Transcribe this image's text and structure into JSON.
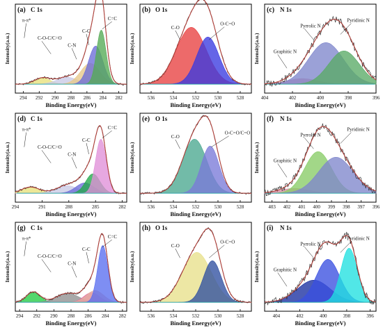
{
  "ylabel": "Intensity(a.u.)",
  "xlabel": "Binding Energy(eV)",
  "chart_data": [
    {
      "id": "a",
      "type": "area",
      "panel_label": "(a)",
      "element": "C 1s",
      "xlim": [
        295,
        281
      ],
      "xticks": [
        294,
        292,
        290,
        288,
        286,
        284,
        282
      ],
      "peaks": [
        {
          "name": "π-π*",
          "center": 291.6,
          "height": 0.09,
          "width": 1.0,
          "color": "#e8e07a"
        },
        {
          "name": "C-O-C/C=O",
          "center": 288.5,
          "height": 0.1,
          "width": 1.3,
          "color": "#c9c9e6"
        },
        {
          "name": "C-N",
          "center": 285.6,
          "height": 0.3,
          "width": 1.2,
          "color": "#e8c888"
        },
        {
          "name": "C-C",
          "center": 284.9,
          "height": 0.55,
          "width": 0.9,
          "color": "#6c6cd8"
        },
        {
          "name": "C=C",
          "center": 284.2,
          "height": 0.78,
          "width": 0.6,
          "color": "#55aa55"
        }
      ]
    },
    {
      "id": "b",
      "type": "area",
      "panel_label": "(b)",
      "element": "O 1s",
      "xlim": [
        537,
        527
      ],
      "xticks": [
        536,
        534,
        532,
        530,
        528
      ],
      "peaks": [
        {
          "name": "C-O",
          "center": 532.4,
          "height": 0.82,
          "width": 1.35,
          "color": "#e84040"
        },
        {
          "name": "O-C=O",
          "center": 530.9,
          "height": 0.68,
          "width": 1.0,
          "color": "#3a3ae0"
        }
      ]
    },
    {
      "id": "c",
      "type": "area",
      "panel_label": "(c)",
      "element": "N 1s",
      "xlim": [
        404,
        396
      ],
      "xticks": [
        404,
        402,
        400,
        398,
        396
      ],
      "peaks": [
        {
          "name": "Graphitic N",
          "center": 401.3,
          "height": 0.08,
          "width": 1.1,
          "color": "#d98aa0"
        },
        {
          "name": "Pyrrolic N",
          "center": 399.6,
          "height": 0.6,
          "width": 1.25,
          "color": "#7f86cc"
        },
        {
          "name": "Pyridinic N",
          "center": 398.3,
          "height": 0.48,
          "width": 1.1,
          "color": "#5aaa66"
        }
      ]
    },
    {
      "id": "d",
      "type": "area",
      "panel_label": "(d)",
      "element": "C 1s",
      "xlim": [
        294,
        281.5
      ],
      "xticks": [
        294,
        291,
        288,
        285,
        282
      ],
      "peaks": [
        {
          "name": "π-π*",
          "center": 292.3,
          "height": 0.09,
          "width": 1.0,
          "color": "#e8e07a"
        },
        {
          "name": "C-O-C/C=O",
          "center": 288.2,
          "height": 0.11,
          "width": 1.2,
          "color": "#c9c9e6"
        },
        {
          "name": "C-N",
          "center": 286.2,
          "height": 0.15,
          "width": 1.0,
          "color": "#6c6cd8"
        },
        {
          "name": "C-C",
          "center": 285.3,
          "height": 0.28,
          "width": 0.8,
          "color": "#22a84a"
        },
        {
          "name": "C=C",
          "center": 284.4,
          "height": 0.78,
          "width": 0.6,
          "color": "#e090d8"
        }
      ]
    },
    {
      "id": "e",
      "type": "area",
      "panel_label": "(e)",
      "element": "O 1s",
      "xlim": [
        537,
        527
      ],
      "xticks": [
        536,
        534,
        532,
        530,
        528
      ],
      "peaks": [
        {
          "name": "C-O",
          "center": 532.1,
          "height": 0.78,
          "width": 1.1,
          "color": "#4aa890"
        },
        {
          "name": "O-C=O/C=O",
          "center": 530.7,
          "height": 0.68,
          "width": 0.8,
          "color": "#7a7ad8"
        }
      ]
    },
    {
      "id": "f",
      "type": "area",
      "panel_label": "(f)",
      "element": "N 1s",
      "xlim": [
        403.5,
        396
      ],
      "xticks": [
        403,
        402,
        401,
        400,
        399,
        398,
        397,
        396
      ],
      "peaks": [
        {
          "name": "Graphitic N",
          "center": 401.5,
          "height": 0.07,
          "width": 1.0,
          "color": "#d98aa0"
        },
        {
          "name": "Pyrrolic N",
          "center": 399.9,
          "height": 0.6,
          "width": 0.9,
          "color": "#88cc66"
        },
        {
          "name": "Pyridinic N",
          "center": 398.7,
          "height": 0.52,
          "width": 1.15,
          "color": "#7f86cc"
        }
      ]
    },
    {
      "id": "g",
      "type": "area",
      "panel_label": "(g)",
      "element": "C 1s",
      "xlim": [
        294.5,
        281.5
      ],
      "xticks": [
        294,
        292,
        290,
        288,
        286,
        284,
        282
      ],
      "peaks": [
        {
          "name": "π-π*",
          "center": 292.4,
          "height": 0.15,
          "width": 0.8,
          "color": "#22cc44"
        },
        {
          "name": "C-O-C/C=O",
          "center": 288.4,
          "height": 0.13,
          "width": 1.3,
          "color": "#909090"
        },
        {
          "name": "C-N",
          "center": 285.6,
          "height": 0.14,
          "width": 0.9,
          "color": "#e060a0"
        },
        {
          "name": "C-C",
          "center": 285.2,
          "height": 0.17,
          "width": 1.0,
          "color": "#e6b0a0"
        },
        {
          "name": "C=C",
          "center": 284.3,
          "height": 0.82,
          "width": 0.6,
          "color": "#5a6ef0"
        }
      ]
    },
    {
      "id": "h",
      "type": "area",
      "panel_label": "(h)",
      "element": "O 1s",
      "xlim": [
        537,
        527
      ],
      "xticks": [
        536,
        534,
        532,
        530,
        528
      ],
      "peaks": [
        {
          "name": "C-O",
          "center": 531.9,
          "height": 0.72,
          "width": 1.3,
          "color": "#e8e08a"
        },
        {
          "name": "O-C=O",
          "center": 530.5,
          "height": 0.6,
          "width": 0.8,
          "color": "#3050a0"
        }
      ]
    },
    {
      "id": "i",
      "type": "area",
      "panel_label": "(i)",
      "element": "N 1s",
      "xlim": [
        405,
        395.5
      ],
      "xticks": [
        404,
        402,
        400,
        398,
        396
      ],
      "peaks": [
        {
          "name": "Graphitic N",
          "center": 400.8,
          "height": 0.32,
          "width": 1.4,
          "color": "#1a2ea0"
        },
        {
          "name": "Pyrrolic N",
          "center": 399.6,
          "height": 0.62,
          "width": 1.0,
          "color": "#3a50e0"
        },
        {
          "name": "Pyridinic N",
          "center": 397.8,
          "height": 0.78,
          "width": 0.7,
          "color": "#20e0e0"
        }
      ]
    }
  ]
}
